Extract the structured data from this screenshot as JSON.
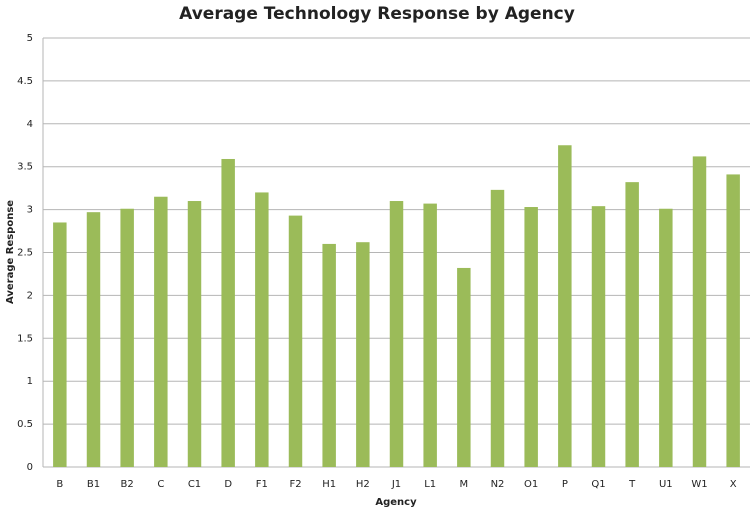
{
  "chart_data": {
    "type": "bar",
    "title": "Average Technology Response by Agency",
    "x_label": "Agency",
    "y_label": "Average Response",
    "categories": [
      "B",
      "B1",
      "B2",
      "C",
      "C1",
      "D",
      "F1",
      "F2",
      "H1",
      "H2",
      "J1",
      "L1",
      "M",
      "N2",
      "O1",
      "P",
      "Q1",
      "T",
      "U1",
      "W1",
      "X"
    ],
    "values": [
      2.85,
      2.97,
      3.01,
      3.15,
      3.1,
      3.59,
      3.2,
      2.93,
      2.6,
      2.62,
      3.1,
      3.07,
      2.32,
      3.23,
      3.03,
      3.75,
      3.04,
      3.32,
      3.01,
      3.62,
      3.41
    ],
    "color": "#9bbb59",
    "ylim": [
      0,
      5
    ],
    "yticks": [
      0,
      0.5,
      1,
      1.5,
      2,
      2.5,
      3,
      3.5,
      4,
      4.5,
      5
    ],
    "grid": true
  }
}
